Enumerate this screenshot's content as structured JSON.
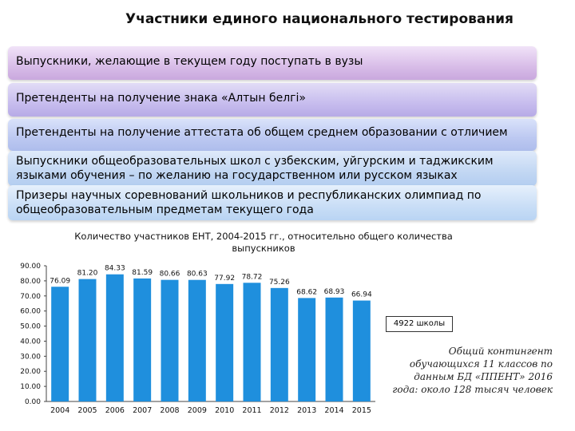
{
  "title": "Участники единого национального тестирования",
  "categories_list": [
    "Выпускники, желающие в текущем году поступать в вузы",
    "Претенденты на получение знака «Алтын белгі»",
    "Претенденты на получение аттестата об общем среднем образовании с отличием",
    "Выпускники общеобразовательных школ с узбекским, уйгурским и таджикским языками обучения – по желанию на государственном или русском языках",
    "Призеры научных соревнований школьников и республиканских олимпиад по общеобразовательным предметам текущего года"
  ],
  "callout": "4922 школы",
  "note": "Общий контингент обучающихся 11 классов по данным БД «ППЕНТ» 2016 года: около 128 тысяч человек",
  "chart_data": {
    "type": "bar",
    "title": "Количество участников ЕНТ, 2004-2015 гг., относительно общего количества выпускников",
    "categories": [
      "2004",
      "2005",
      "2006",
      "2007",
      "2008",
      "2009",
      "2010",
      "2011",
      "2012",
      "2013",
      "2014",
      "2015"
    ],
    "values": [
      76.09,
      81.2,
      84.33,
      81.59,
      80.66,
      80.63,
      77.92,
      78.72,
      75.26,
      68.62,
      68.93,
      66.94
    ],
    "data_labels": [
      "76.09",
      "81.20",
      "84.33",
      "81.59",
      "80.66",
      "80.63",
      "77.92",
      "78.72",
      "75.26",
      "68.62",
      "68.93",
      "66.94"
    ],
    "ylim": [
      0,
      90
    ],
    "yticks": [
      "0.00",
      "10.00",
      "20.00",
      "30.00",
      "40.00",
      "50.00",
      "60.00",
      "70.00",
      "80.00",
      "90.00"
    ],
    "grid": false,
    "bar_color": "#1f8fdd"
  }
}
